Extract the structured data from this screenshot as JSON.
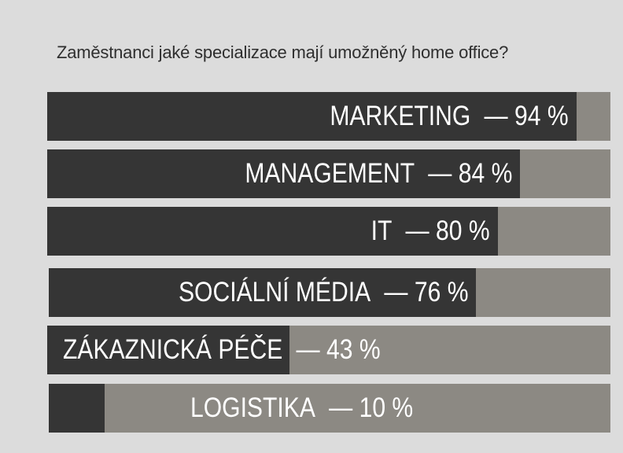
{
  "chart_data": {
    "type": "bar",
    "orientation": "horizontal",
    "title": "Zaměstnanci jaké specializace mají umožněný home office?",
    "categories": [
      "MARKETING",
      "MANAGEMENT",
      "IT",
      "SOCIÁLNÍ MÉDIA",
      "ZÁKAZNICKÁ PÉČE",
      "LOGISTIKA"
    ],
    "values": [
      94,
      84,
      80,
      76,
      43,
      10
    ],
    "value_labels": [
      "— 94 %",
      "— 84 %",
      "— 80 %",
      "— 76 %",
      "— 43 %",
      "— 10 %"
    ],
    "xlim": [
      0,
      100
    ],
    "colors": {
      "fill": "#353535",
      "track": "#8c8983",
      "background": "#dcdcdc",
      "label": "#ffffff"
    }
  }
}
